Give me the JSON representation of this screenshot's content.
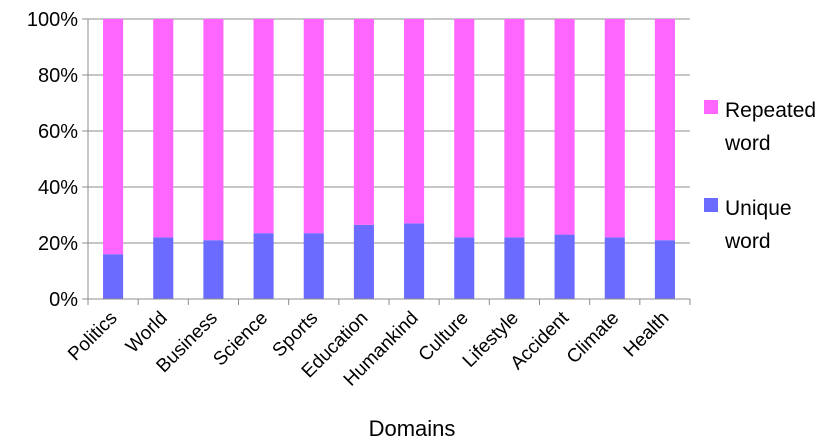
{
  "chart_data": {
    "type": "bar",
    "stacked": true,
    "percent": true,
    "xlabel": "Domains",
    "ylabel": "",
    "ylim": [
      0,
      100
    ],
    "yticks": [
      "0%",
      "20%",
      "40%",
      "60%",
      "80%",
      "100%"
    ],
    "grid": true,
    "legend_position": "right",
    "categories": [
      "Politics",
      "World",
      "Business",
      "Science",
      "Sports",
      "Education",
      "Humankind",
      "Culture",
      "Lifestyle",
      "Accident",
      "Climate",
      "Health"
    ],
    "series": [
      {
        "name": "Unique word",
        "color": "#6b6bff",
        "values": [
          16,
          22,
          21,
          23.5,
          23.5,
          26.5,
          27,
          22,
          22,
          23,
          22,
          21
        ]
      },
      {
        "name": "Repeated word",
        "color": "#ff66ff",
        "values": [
          84,
          78,
          79,
          76.5,
          76.5,
          73.5,
          73,
          78,
          78,
          77,
          78,
          79
        ]
      }
    ],
    "legend": [
      {
        "series": "Repeated word",
        "lines": [
          "Repeated",
          "word"
        ]
      },
      {
        "series": "Unique word",
        "lines": [
          "Unique",
          "word"
        ]
      }
    ]
  }
}
